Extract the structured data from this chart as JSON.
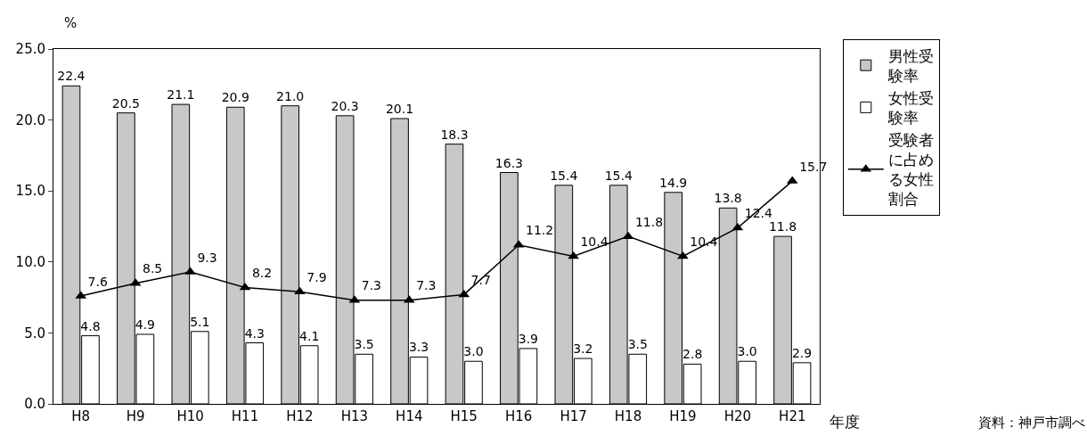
{
  "chart_data": {
    "type": "bar",
    "ylabel": "%",
    "xlabel": "年度",
    "annotations": [
      "資料：神戸市調べ"
    ],
    "categories": [
      "H8",
      "H9",
      "H10",
      "H11",
      "H12",
      "H13",
      "H14",
      "H15",
      "H16",
      "H17",
      "H18",
      "H19",
      "H20",
      "H21"
    ],
    "series": [
      {
        "name": "男性受験率",
        "color": "#c8c8c8",
        "values": [
          22.4,
          20.5,
          21.1,
          20.9,
          21.0,
          20.3,
          20.1,
          18.3,
          16.3,
          15.4,
          15.4,
          14.9,
          13.8,
          11.8
        ],
        "value_labels": [
          "22.4",
          "20.5",
          "21.1",
          "20.9",
          "21.0",
          "20.3",
          "20.1",
          "18.3",
          "16.3",
          "15.4",
          "15.4",
          "14.9",
          "13.8",
          "11.8"
        ]
      },
      {
        "name": "女性受験率",
        "color": "#ffffff",
        "values": [
          4.8,
          4.9,
          5.1,
          4.3,
          4.1,
          3.5,
          3.3,
          3.0,
          3.9,
          3.2,
          3.5,
          2.8,
          3.0,
          2.9
        ],
        "value_labels": [
          "4.8",
          "4.9",
          "5.1",
          "4.3",
          "4.1",
          "3.5",
          "3.3",
          "3.0",
          "3.9",
          "3.2",
          "3.5",
          "2.8",
          "3.0",
          "2.9"
        ]
      },
      {
        "name": "受験者に占める女性割合",
        "type": "line",
        "color": "#000000",
        "marker": "triangle",
        "values": [
          7.6,
          8.5,
          9.3,
          8.2,
          7.9,
          7.3,
          7.3,
          7.7,
          11.2,
          10.4,
          11.8,
          10.4,
          12.4,
          15.7
        ],
        "value_labels": [
          "7.6",
          "8.5",
          "9.3",
          "8.2",
          "7.9",
          "7.3",
          "7.3",
          "7.7",
          "11.2",
          "10.4",
          "11.8",
          "10.4",
          "12.4",
          "15.7"
        ]
      }
    ],
    "ylim": [
      0,
      25
    ],
    "yticks": [
      {
        "value": 0,
        "label": "0.0"
      },
      {
        "value": 5,
        "label": "5.0"
      },
      {
        "value": 10,
        "label": "10.0"
      },
      {
        "value": 15,
        "label": "15.0"
      },
      {
        "value": 20,
        "label": "20.0"
      },
      {
        "value": 25,
        "label": "25.0"
      }
    ],
    "legend": "right"
  }
}
